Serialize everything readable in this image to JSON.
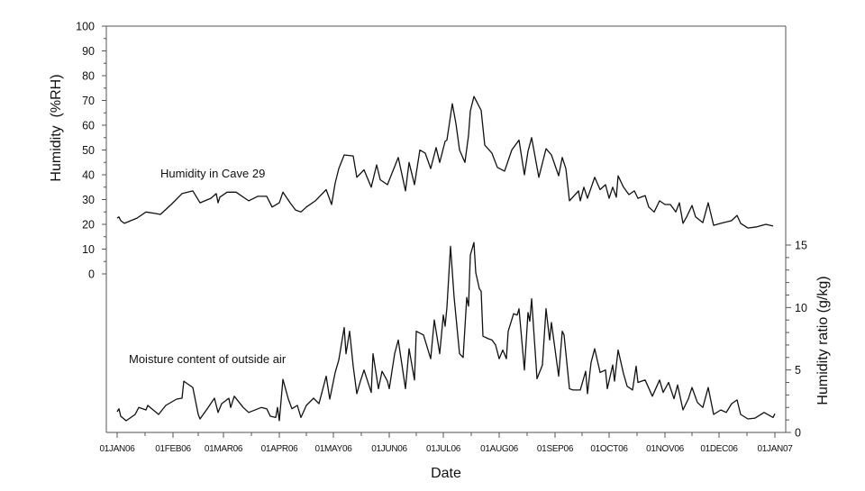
{
  "chart_data": [
    {
      "type": "line",
      "title": "",
      "xlabel": "Date",
      "ylabel": "Humidity  (%RH)",
      "y_axis": "left",
      "ylim": [
        0,
        100
      ],
      "yticks": [
        0,
        10,
        20,
        30,
        40,
        50,
        60,
        70,
        80,
        90,
        100
      ],
      "grid": false,
      "x_unit": "day of year 2006",
      "series": [
        {
          "name": "Humidity in Cave 29",
          "points": [
            [
              0,
              22.5
            ],
            [
              1,
              23
            ],
            [
              2,
              21.5
            ],
            [
              4,
              20.4
            ],
            [
              11,
              22.5
            ],
            [
              16,
              25
            ],
            [
              21,
              24.4
            ],
            [
              24,
              24
            ],
            [
              30,
              28
            ],
            [
              36,
              32.4
            ],
            [
              42,
              33.5
            ],
            [
              46,
              28.7
            ],
            [
              52,
              30.5
            ],
            [
              55,
              32.4
            ],
            [
              56,
              28.7
            ],
            [
              57,
              31
            ],
            [
              61,
              33
            ],
            [
              66,
              33
            ],
            [
              73,
              29.5
            ],
            [
              78,
              31.3
            ],
            [
              83,
              31.3
            ],
            [
              86,
              27
            ],
            [
              90,
              28.7
            ],
            [
              92,
              33
            ],
            [
              96,
              28.7
            ],
            [
              99,
              25.8
            ],
            [
              102,
              25
            ],
            [
              105,
              27
            ],
            [
              110,
              29.5
            ],
            [
              116,
              34
            ],
            [
              119,
              28
            ],
            [
              121,
              36.7
            ],
            [
              123,
              42.5
            ],
            [
              126,
              48
            ],
            [
              131,
              47.6
            ],
            [
              133,
              39
            ],
            [
              137,
              42
            ],
            [
              141,
              35
            ],
            [
              144,
              44
            ],
            [
              146,
              38
            ],
            [
              150,
              36
            ],
            [
              156,
              47
            ],
            [
              160,
              33.5
            ],
            [
              162,
              45
            ],
            [
              165,
              36
            ],
            [
              168,
              50
            ],
            [
              171,
              48.7
            ],
            [
              174,
              42.5
            ],
            [
              177,
              51
            ],
            [
              179,
              45
            ],
            [
              182,
              53.5
            ],
            [
              183,
              54
            ],
            [
              186,
              68.7
            ],
            [
              188,
              60.7
            ],
            [
              190,
              50
            ],
            [
              193,
              45
            ],
            [
              195,
              56
            ],
            [
              196,
              65.8
            ],
            [
              198,
              71.6
            ],
            [
              202,
              66
            ],
            [
              204,
              52
            ],
            [
              208,
              48.7
            ],
            [
              211,
              43
            ],
            [
              215,
              41.5
            ],
            [
              219,
              50
            ],
            [
              223,
              54
            ],
            [
              226,
              40
            ],
            [
              228,
              49.5
            ],
            [
              230,
              55
            ],
            [
              234,
              39
            ],
            [
              238,
              50.5
            ],
            [
              241,
              48
            ],
            [
              245,
              39.6
            ],
            [
              247,
              47
            ],
            [
              249,
              42.5
            ],
            [
              251,
              29.5
            ],
            [
              256,
              33.5
            ],
            [
              257,
              29.5
            ],
            [
              259,
              35
            ],
            [
              261,
              30.5
            ],
            [
              265,
              39
            ],
            [
              268,
              34
            ],
            [
              271,
              36
            ],
            [
              273,
              30.5
            ],
            [
              275,
              35
            ],
            [
              277,
              31
            ],
            [
              278,
              39.6
            ],
            [
              281,
              35
            ],
            [
              284,
              32
            ],
            [
              287,
              33.5
            ],
            [
              289,
              30.5
            ],
            [
              293,
              31.6
            ],
            [
              295,
              27
            ],
            [
              298,
              25
            ],
            [
              301,
              29.5
            ],
            [
              304,
              28
            ],
            [
              307,
              28
            ],
            [
              310,
              25
            ],
            [
              312,
              28.7
            ],
            [
              314,
              20.4
            ],
            [
              316,
              23
            ],
            [
              319,
              27.6
            ],
            [
              321,
              23
            ],
            [
              325,
              20.7
            ],
            [
              328,
              28.7
            ],
            [
              331,
              19.6
            ],
            [
              335,
              20.4
            ],
            [
              341,
              21.5
            ],
            [
              344,
              23.6
            ],
            [
              346,
              20.4
            ],
            [
              350,
              18.5
            ],
            [
              355,
              19
            ],
            [
              360,
              20
            ],
            [
              364,
              19.3
            ]
          ]
        }
      ]
    },
    {
      "type": "line",
      "title": "",
      "xlabel": "Date",
      "ylabel": "Humidity ratio (g/kg)",
      "y_axis": "right",
      "ylim": [
        0,
        15
      ],
      "yticks": [
        0,
        5,
        10,
        15
      ],
      "grid": false,
      "x_unit": "day of year 2006",
      "series": [
        {
          "name": "Moisture content of outside air",
          "points": [
            [
              0,
              1.66
            ],
            [
              1,
              1.9
            ],
            [
              2,
              1.3
            ],
            [
              5,
              0.94
            ],
            [
              10,
              1.44
            ],
            [
              12,
              2.0
            ],
            [
              16,
              1.8
            ],
            [
              17,
              2.16
            ],
            [
              23,
              1.44
            ],
            [
              27,
              2.16
            ],
            [
              33,
              2.67
            ],
            [
              36,
              2.74
            ],
            [
              37,
              4.1
            ],
            [
              42,
              3.6
            ],
            [
              45,
              1.44
            ],
            [
              46,
              1.08
            ],
            [
              50,
              1.9
            ],
            [
              54,
              2.74
            ],
            [
              56,
              1.6
            ],
            [
              58,
              2.3
            ],
            [
              62,
              2.74
            ],
            [
              63,
              2.0
            ],
            [
              65,
              2.9
            ],
            [
              70,
              2.0
            ],
            [
              73,
              1.6
            ],
            [
              80,
              2.0
            ],
            [
              83,
              1.9
            ],
            [
              85,
              1.3
            ],
            [
              88,
              1.2
            ],
            [
              89,
              2.0
            ],
            [
              90,
              0.94
            ],
            [
              92,
              4.25
            ],
            [
              95,
              2.67
            ],
            [
              97,
              1.9
            ],
            [
              100,
              2.16
            ],
            [
              102,
              1.2
            ],
            [
              105,
              2.16
            ],
            [
              109,
              2.74
            ],
            [
              112,
              2.3
            ],
            [
              116,
              4.5
            ],
            [
              118,
              2.67
            ],
            [
              121,
              4.8
            ],
            [
              123,
              5.8
            ],
            [
              126,
              8.4
            ],
            [
              127,
              6.3
            ],
            [
              129,
              8.1
            ],
            [
              131,
              5.3
            ],
            [
              133,
              3.1
            ],
            [
              135,
              4.1
            ],
            [
              137,
              5.0
            ],
            [
              141,
              3.2
            ],
            [
              142,
              6.3
            ],
            [
              145,
              3.5
            ],
            [
              147,
              4.9
            ],
            [
              150,
              4.1
            ],
            [
              151,
              3.5
            ],
            [
              154,
              6.3
            ],
            [
              156,
              7.4
            ],
            [
              160,
              3.5
            ],
            [
              162,
              6.7
            ],
            [
              165,
              4.2
            ],
            [
              166,
              8.1
            ],
            [
              170,
              7.8
            ],
            [
              174,
              5.9
            ],
            [
              176,
              9.0
            ],
            [
              179,
              6.3
            ],
            [
              181,
              9.4
            ],
            [
              182,
              8.5
            ],
            [
              183,
              10.0
            ],
            [
              185,
              14.9
            ],
            [
              187,
              10.8
            ],
            [
              190,
              6.3
            ],
            [
              192,
              6.0
            ],
            [
              194,
              10.8
            ],
            [
              195,
              10.1
            ],
            [
              196,
              14.2
            ],
            [
              198,
              15.2
            ],
            [
              199,
              12.8
            ],
            [
              201,
              11.5
            ],
            [
              202,
              11.3
            ],
            [
              203,
              7.7
            ],
            [
              206,
              7.5
            ],
            [
              208,
              7.4
            ],
            [
              210,
              7.0
            ],
            [
              212,
              5.9
            ],
            [
              214,
              6.6
            ],
            [
              216,
              5.9
            ],
            [
              217,
              8.1
            ],
            [
              220,
              9.5
            ],
            [
              222,
              9.4
            ],
            [
              223,
              9.9
            ],
            [
              226,
              5.0
            ],
            [
              228,
              9.6
            ],
            [
              229,
              8.9
            ],
            [
              230,
              10.7
            ],
            [
              233,
              4.3
            ],
            [
              236,
              5.4
            ],
            [
              238,
              9.9
            ],
            [
              240,
              7.4
            ],
            [
              241,
              8.8
            ],
            [
              245,
              4.5
            ],
            [
              247,
              8.1
            ],
            [
              248,
              7.8
            ],
            [
              251,
              3.5
            ],
            [
              253,
              3.4
            ],
            [
              257,
              3.4
            ],
            [
              260,
              4.9
            ],
            [
              261,
              3.1
            ],
            [
              263,
              5.6
            ],
            [
              265,
              6.7
            ],
            [
              268,
              4.8
            ],
            [
              271,
              5.0
            ],
            [
              272,
              3.5
            ],
            [
              275,
              5.4
            ],
            [
              276,
              4.1
            ],
            [
              278,
              6.6
            ],
            [
              281,
              4.7
            ],
            [
              283,
              3.7
            ],
            [
              286,
              3.4
            ],
            [
              288,
              5.3
            ],
            [
              289,
              4.0
            ],
            [
              293,
              4.2
            ],
            [
              297,
              2.9
            ],
            [
              301,
              4.2
            ],
            [
              303,
              3.2
            ],
            [
              306,
              4.0
            ],
            [
              309,
              2.7
            ],
            [
              311,
              3.8
            ],
            [
              314,
              1.8
            ],
            [
              317,
              2.7
            ],
            [
              319,
              3.6
            ],
            [
              322,
              2.4
            ],
            [
              325,
              2.0
            ],
            [
              328,
              3.6
            ],
            [
              331,
              1.44
            ],
            [
              335,
              1.8
            ],
            [
              338,
              1.6
            ],
            [
              341,
              2.3
            ],
            [
              344,
              2.6
            ],
            [
              346,
              1.44
            ],
            [
              350,
              1.08
            ],
            [
              354,
              1.15
            ],
            [
              359,
              1.6
            ],
            [
              364,
              1.2
            ],
            [
              365,
              1.5
            ]
          ]
        }
      ]
    }
  ],
  "x_axis": {
    "label": "Date",
    "xlim": [
      0,
      365
    ],
    "ticks": [
      {
        "day": 0,
        "label": "01JAN06"
      },
      {
        "day": 31,
        "label": "01FEB06"
      },
      {
        "day": 59,
        "label": "01MAR06"
      },
      {
        "day": 90,
        "label": "01APR06"
      },
      {
        "day": 120,
        "label": "01MAY06"
      },
      {
        "day": 151,
        "label": "01JUN06"
      },
      {
        "day": 181,
        "label": "01JUL06"
      },
      {
        "day": 212,
        "label": "01AUG06"
      },
      {
        "day": 243,
        "label": "01SEP06"
      },
      {
        "day": 273,
        "label": "01OCT06"
      },
      {
        "day": 304,
        "label": "01NOV06"
      },
      {
        "day": 334,
        "label": "01DEC06"
      },
      {
        "day": 365,
        "label": "01JAN07"
      }
    ]
  },
  "labels": {
    "left_axis": "Humidity  (%RH)",
    "right_axis": "Humidity ratio (g/kg)",
    "x_axis": "Date",
    "cave_annotation": "Humidity in Cave 29",
    "outside_annotation": "Moisture content of outside air"
  },
  "colors": {
    "line": "#111111",
    "axis": "#555555"
  }
}
